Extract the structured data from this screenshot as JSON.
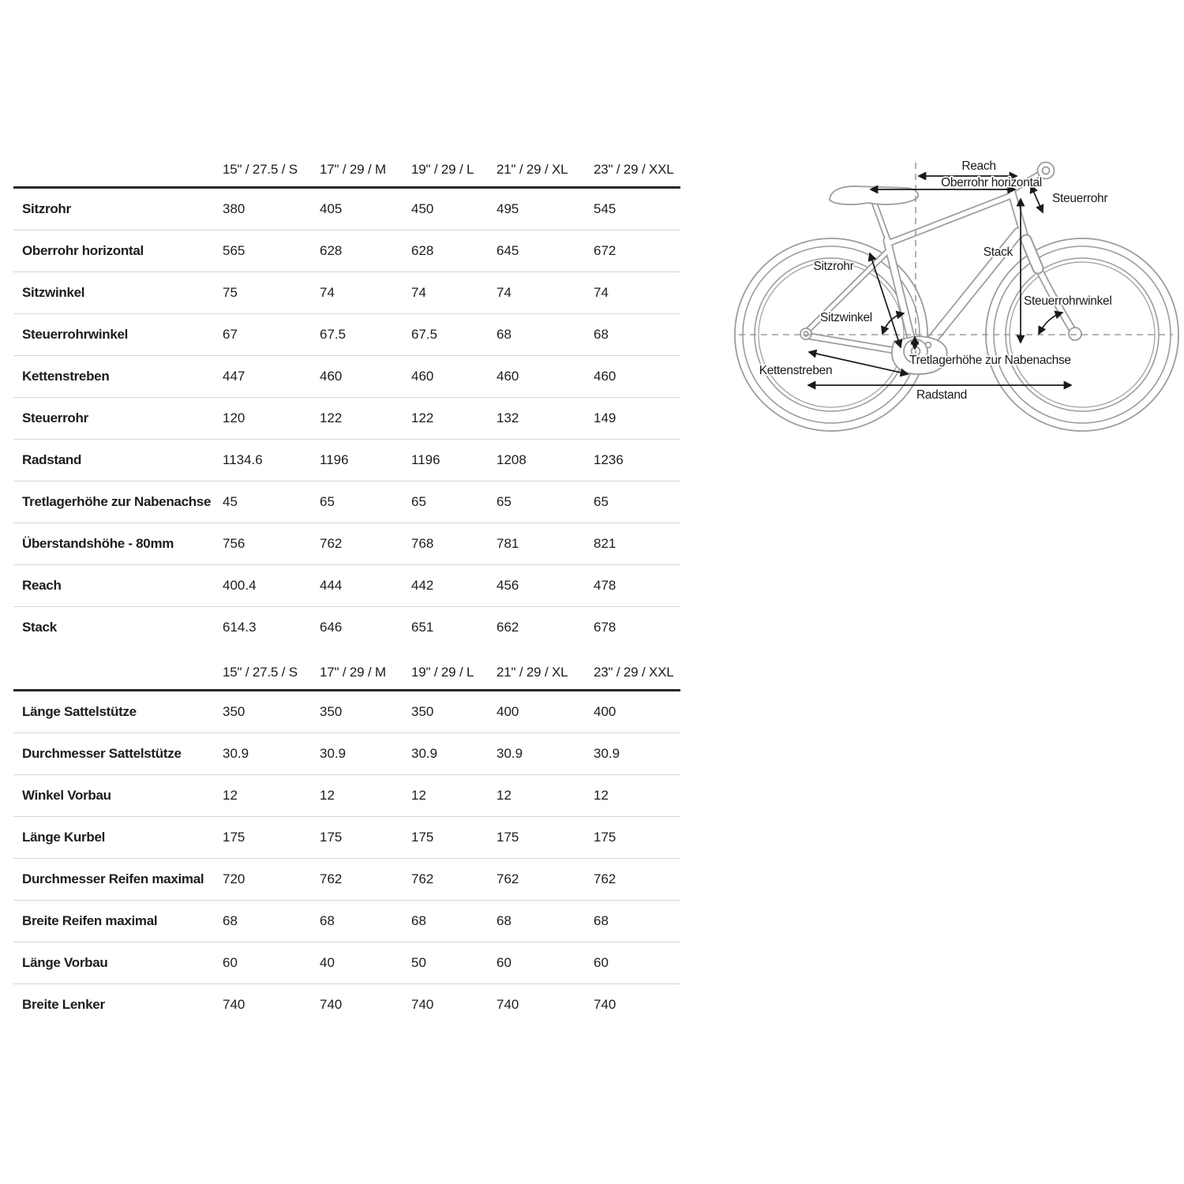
{
  "columns": [
    "15\" / 27.5 / S",
    "17\" / 29 / M",
    "19\" / 29 / L",
    "21\" / 29 / XL",
    "23\" / 29 / XXL"
  ],
  "geometry_table": {
    "rows": [
      {
        "label": "Sitzrohr",
        "values": [
          "380",
          "405",
          "450",
          "495",
          "545"
        ]
      },
      {
        "label": "Oberrohr horizontal",
        "values": [
          "565",
          "628",
          "628",
          "645",
          "672"
        ]
      },
      {
        "label": "Sitzwinkel",
        "values": [
          "75",
          "74",
          "74",
          "74",
          "74"
        ]
      },
      {
        "label": "Steuerrohrwinkel",
        "values": [
          "67",
          "67.5",
          "67.5",
          "68",
          "68"
        ]
      },
      {
        "label": "Kettenstreben",
        "values": [
          "447",
          "460",
          "460",
          "460",
          "460"
        ]
      },
      {
        "label": "Steuerrohr",
        "values": [
          "120",
          "122",
          "122",
          "132",
          "149"
        ]
      },
      {
        "label": "Radstand",
        "values": [
          "1134.6",
          "1196",
          "1196",
          "1208",
          "1236"
        ]
      },
      {
        "label": "Tretlagerhöhe zur Nabenachse",
        "values": [
          "45",
          "65",
          "65",
          "65",
          "65"
        ]
      },
      {
        "label": "Überstandshöhe - 80mm",
        "values": [
          "756",
          "762",
          "768",
          "781",
          "821"
        ]
      },
      {
        "label": "Reach",
        "values": [
          "400.4",
          "444",
          "442",
          "456",
          "478"
        ]
      },
      {
        "label": "Stack",
        "values": [
          "614.3",
          "646",
          "651",
          "662",
          "678"
        ]
      }
    ]
  },
  "components_table": {
    "rows": [
      {
        "label": "Länge Sattelstütze",
        "values": [
          "350",
          "350",
          "350",
          "400",
          "400"
        ]
      },
      {
        "label": "Durchmesser Sattelstütze",
        "values": [
          "30.9",
          "30.9",
          "30.9",
          "30.9",
          "30.9"
        ]
      },
      {
        "label": "Winkel Vorbau",
        "values": [
          "12",
          "12",
          "12",
          "12",
          "12"
        ]
      },
      {
        "label": "Länge Kurbel",
        "values": [
          "175",
          "175",
          "175",
          "175",
          "175"
        ]
      },
      {
        "label": "Durchmesser Reifen maximal",
        "values": [
          "720",
          "762",
          "762",
          "762",
          "762"
        ]
      },
      {
        "label": "Breite Reifen maximal",
        "values": [
          "68",
          "68",
          "68",
          "68",
          "68"
        ]
      },
      {
        "label": "Länge Vorbau",
        "values": [
          "60",
          "40",
          "50",
          "60",
          "60"
        ]
      },
      {
        "label": "Breite Lenker",
        "values": [
          "740",
          "740",
          "740",
          "740",
          "740"
        ]
      }
    ]
  },
  "diagram": {
    "labels": {
      "reach": "Reach",
      "oberrohr_horizontal": "Oberrohr horizontal",
      "steuerrohr": "Steuerrohr",
      "stack": "Stack",
      "sitzrohr": "Sitzrohr",
      "sitzwinkel": "Sitzwinkel",
      "steuerrohrwinkel": "Steuerrohrwinkel",
      "tretlagerhoehe": "Tretlagerhöhe zur Nabenachse",
      "kettenstreben": "Kettenstreben",
      "radstand": "Radstand"
    }
  },
  "colors": {
    "text": "#1d1d1b",
    "rule_thick": "#282828",
    "rule_thin": "#d6d6d6",
    "bike_outline": "#9c9c9c",
    "annotation": "#1a1a1a",
    "background": "#ffffff"
  }
}
